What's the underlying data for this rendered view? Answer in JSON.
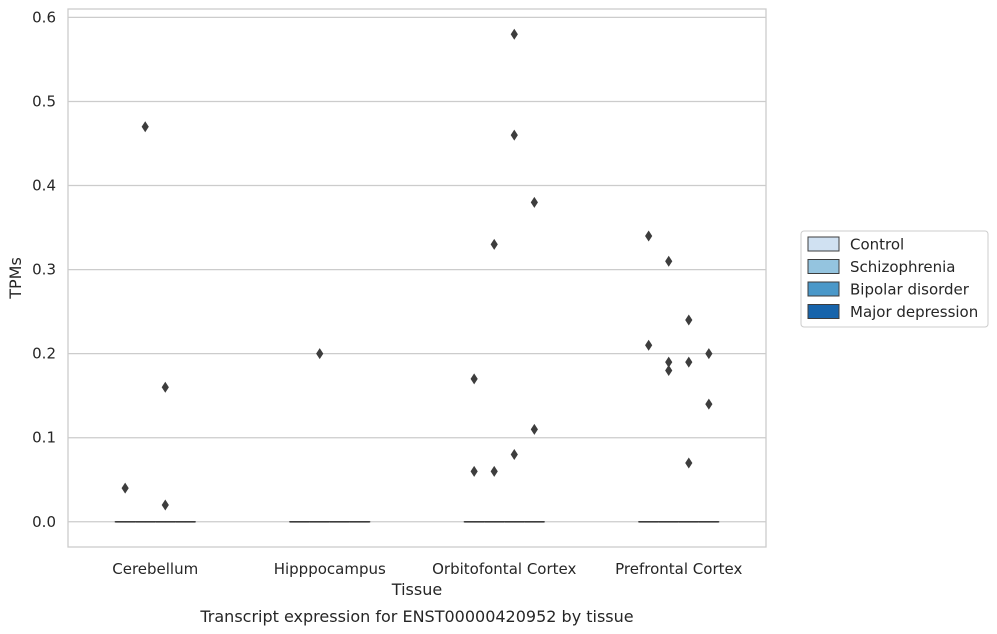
{
  "caption": "Transcript expression for ENST00000420952 by tissue",
  "chart_data": {
    "type": "box",
    "xlabel": "Tissue",
    "ylabel": "TPMs",
    "ylim": [
      -0.03,
      0.61
    ],
    "yticks": [
      "0.0",
      "0.1",
      "0.2",
      "0.3",
      "0.4",
      "0.5",
      "0.6"
    ],
    "grid": "horizontal",
    "legend_position": "right",
    "categories": [
      "Cerebellum",
      "Hipppocampus",
      "Orbitofontal Cortex",
      "Prefrontal Cortex"
    ],
    "series": [
      {
        "name": "Control",
        "color": "#d0e1f2"
      },
      {
        "name": "Schizophrenia",
        "color": "#94c4df"
      },
      {
        "name": "Bipolar disorder",
        "color": "#4a98c9"
      },
      {
        "name": "Major depression",
        "color": "#1764ab"
      }
    ],
    "boxes": [
      {
        "category": "Cerebellum",
        "series": "Control",
        "median": 0,
        "q1": 0,
        "q3": 0
      },
      {
        "category": "Cerebellum",
        "series": "Schizophrenia",
        "median": 0,
        "q1": 0,
        "q3": 0
      },
      {
        "category": "Cerebellum",
        "series": "Bipolar disorder",
        "median": 0,
        "q1": 0,
        "q3": 0
      },
      {
        "category": "Cerebellum",
        "series": "Major depression",
        "median": 0,
        "q1": 0,
        "q3": 0
      },
      {
        "category": "Hipppocampus",
        "series": "Control",
        "median": 0,
        "q1": 0,
        "q3": 0
      },
      {
        "category": "Hipppocampus",
        "series": "Schizophrenia",
        "median": 0,
        "q1": 0,
        "q3": 0
      },
      {
        "category": "Hipppocampus",
        "series": "Bipolar disorder",
        "median": 0,
        "q1": 0,
        "q3": 0
      },
      {
        "category": "Hipppocampus",
        "series": "Major depression",
        "median": 0,
        "q1": 0,
        "q3": 0
      },
      {
        "category": "Orbitofontal Cortex",
        "series": "Control",
        "median": 0,
        "q1": 0,
        "q3": 0
      },
      {
        "category": "Orbitofontal Cortex",
        "series": "Schizophrenia",
        "median": 0,
        "q1": 0,
        "q3": 0
      },
      {
        "category": "Orbitofontal Cortex",
        "series": "Bipolar disorder",
        "median": 0,
        "q1": 0,
        "q3": 0
      },
      {
        "category": "Orbitofontal Cortex",
        "series": "Major depression",
        "median": 0,
        "q1": 0,
        "q3": 0
      },
      {
        "category": "Prefrontal Cortex",
        "series": "Control",
        "median": 0,
        "q1": 0,
        "q3": 0
      },
      {
        "category": "Prefrontal Cortex",
        "series": "Schizophrenia",
        "median": 0,
        "q1": 0,
        "q3": 0
      },
      {
        "category": "Prefrontal Cortex",
        "series": "Bipolar disorder",
        "median": 0,
        "q1": 0,
        "q3": 0
      },
      {
        "category": "Prefrontal Cortex",
        "series": "Major depression",
        "median": 0,
        "q1": 0,
        "q3": 0
      }
    ],
    "outliers": [
      {
        "category": "Cerebellum",
        "series": "Control",
        "values": [
          0.04
        ]
      },
      {
        "category": "Cerebellum",
        "series": "Schizophrenia",
        "values": [
          0.47
        ]
      },
      {
        "category": "Cerebellum",
        "series": "Bipolar disorder",
        "values": [
          0.16,
          0.02
        ]
      },
      {
        "category": "Hipppocampus",
        "series": "Schizophrenia",
        "values": [
          0.2
        ]
      },
      {
        "category": "Orbitofontal Cortex",
        "series": "Control",
        "values": [
          0.17,
          0.06
        ]
      },
      {
        "category": "Orbitofontal Cortex",
        "series": "Schizophrenia",
        "values": [
          0.33,
          0.06
        ]
      },
      {
        "category": "Orbitofontal Cortex",
        "series": "Bipolar disorder",
        "values": [
          0.58,
          0.46,
          0.08
        ]
      },
      {
        "category": "Orbitofontal Cortex",
        "series": "Major depression",
        "values": [
          0.38,
          0.11
        ]
      },
      {
        "category": "Prefrontal Cortex",
        "series": "Control",
        "values": [
          0.34,
          0.21
        ]
      },
      {
        "category": "Prefrontal Cortex",
        "series": "Schizophrenia",
        "values": [
          0.31,
          0.19,
          0.18
        ]
      },
      {
        "category": "Prefrontal Cortex",
        "series": "Bipolar disorder",
        "values": [
          0.24,
          0.19,
          0.07
        ]
      },
      {
        "category": "Prefrontal Cortex",
        "series": "Major depression",
        "values": [
          0.2,
          0.14
        ]
      }
    ]
  }
}
